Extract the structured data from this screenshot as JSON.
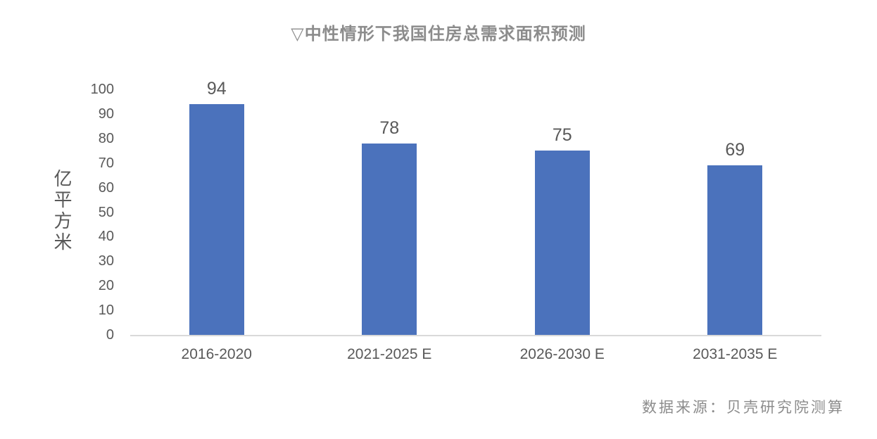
{
  "chart": {
    "title": "▽中性情形下我国住房总需求面积预测",
    "source": "数据来源：贝壳研究院测算"
  },
  "chart_data": {
    "type": "bar",
    "title": "▽中性情形下我国住房总需求面积预测",
    "categories": [
      "2016-2020",
      "2021-2025 E",
      "2026-2030 E",
      "2031-2035 E"
    ],
    "values": [
      94,
      78,
      75,
      69
    ],
    "xlabel": "",
    "ylabel": "亿平方米",
    "ylim": [
      0,
      100
    ],
    "yticks": [
      0,
      10,
      20,
      30,
      40,
      50,
      60,
      70,
      80,
      90,
      100
    ],
    "grid": false,
    "legend": false,
    "data_labels_shown": true,
    "source": "数据来源：贝壳研究院测算",
    "colors": {
      "bar": "#4b72bc",
      "tick_text": "#595959",
      "title_text": "#8c8c8c",
      "source_text": "#8c8c8c",
      "axis_line": "#d9d9d9",
      "background": "#ffffff"
    }
  }
}
